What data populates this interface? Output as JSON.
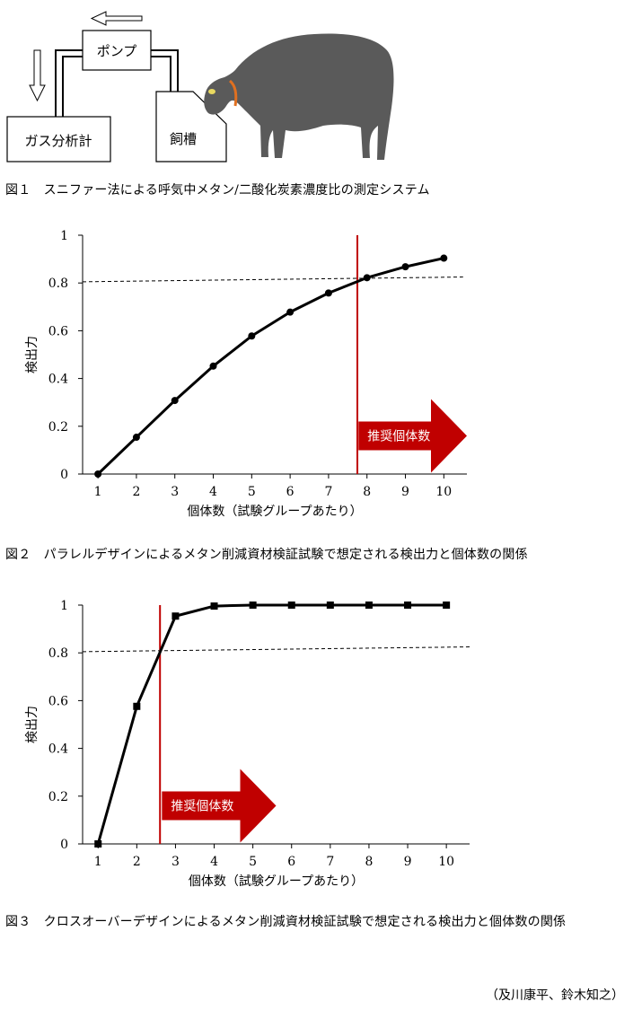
{
  "figure1": {
    "pump_label": "ポンプ",
    "analyzer_label": "ガス分析計",
    "trough_label": "飼槽",
    "caption": "図１　スニファー法による呼気中メタン/二酸化炭素濃度比の測定システム"
  },
  "figure2": {
    "caption": "図２　パラレルデザインによるメタン削減資材検証試験で想定される検出力と個体数の関係"
  },
  "figure3": {
    "caption": "図３　クロスオーバーデザインによるメタン削減資材検証試験で想定される検出力と個体数の関係"
  },
  "credit": "（及川康平、鈴木知之）",
  "chart_data": [
    {
      "type": "line",
      "xlabel": "個体数（試験グループあたり）",
      "ylabel": "検出力",
      "x": [
        1,
        2,
        3,
        4,
        5,
        6,
        7,
        8,
        9,
        10
      ],
      "xticks": [
        "1",
        "2",
        "3",
        "4",
        "5",
        "6",
        "7",
        "8",
        "9",
        "10"
      ],
      "yticks": [
        "0",
        "0.2",
        "0.4",
        "0.6",
        "0.8",
        "1"
      ],
      "series": [
        {
          "values": [
            0,
            0.154,
            0.308,
            0.452,
            0.578,
            0.678,
            0.758,
            0.822,
            0.868,
            0.904
          ],
          "marker": "circle",
          "color": "#000000"
        }
      ],
      "xlim": [
        0.6,
        10.6
      ],
      "ylim": [
        0,
        1
      ],
      "reference_line": {
        "x_start": 0.6,
        "y_start": 0.805,
        "x_end": 10.5,
        "y_end": 0.825,
        "style": "dashed"
      },
      "threshold_x": 7.75,
      "threshold_color": "#c00000",
      "annotation": {
        "text": "推奨個体数",
        "color": "#c00000",
        "x_from": 7.78,
        "x_to": 10.6,
        "y": 0.16
      },
      "grid": false
    },
    {
      "type": "line",
      "xlabel": "個体数（試験グループあたり）",
      "ylabel": "検出力",
      "x": [
        1,
        2,
        3,
        4,
        5,
        6,
        7,
        8,
        9,
        10
      ],
      "xticks": [
        "1",
        "2",
        "3",
        "4",
        "5",
        "6",
        "7",
        "8",
        "9",
        "10"
      ],
      "yticks": [
        "0",
        "0.2",
        "0.4",
        "0.6",
        "0.8",
        "1"
      ],
      "series": [
        {
          "values": [
            0,
            0.576,
            0.954,
            0.996,
            1,
            1,
            1,
            1,
            1,
            1
          ],
          "marker": "square",
          "color": "#000000"
        }
      ],
      "xlim": [
        0.6,
        10.6
      ],
      "ylim": [
        0,
        1
      ],
      "reference_line": {
        "x_start": 0.6,
        "y_start": 0.805,
        "x_end": 10.6,
        "y_end": 0.825,
        "style": "dashed"
      },
      "threshold_x": 2.6,
      "threshold_color": "#c00000",
      "annotation": {
        "text": "推奨個体数",
        "color": "#c00000",
        "x_from": 2.65,
        "x_to": 5.6,
        "y": 0.16
      },
      "grid": false
    }
  ]
}
